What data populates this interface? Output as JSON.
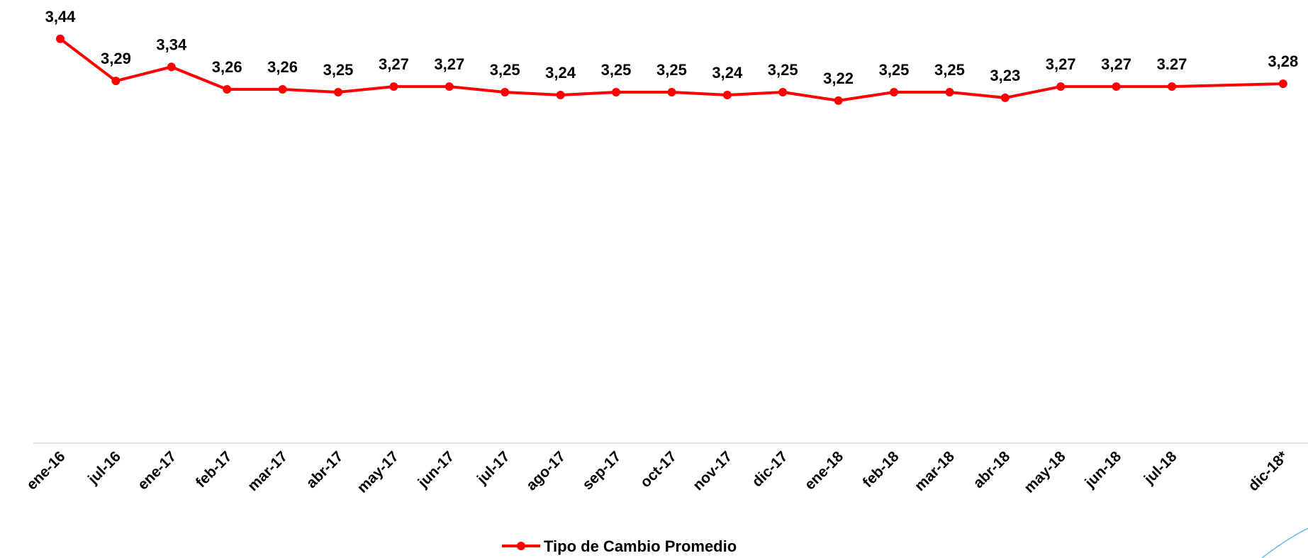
{
  "chart_data": {
    "type": "line",
    "categories": [
      "ene-16",
      "jul-16",
      "ene-17",
      "feb-17",
      "mar-17",
      "abr-17",
      "may-17",
      "jun-17",
      "jul-17",
      "ago-17",
      "sep-17",
      "oct-17",
      "nov-17",
      "dic-17",
      "ene-18",
      "feb-18",
      "mar-18",
      "abr-18",
      "may-18",
      "jun-18",
      "jul-18",
      null,
      "dic-18*"
    ],
    "series": [
      {
        "name": "Tipo de Cambio Promedio",
        "color": "#ff0000",
        "values": [
          3.44,
          3.29,
          3.34,
          3.26,
          3.26,
          3.25,
          3.27,
          3.27,
          3.25,
          3.24,
          3.25,
          3.25,
          3.24,
          3.25,
          3.22,
          3.25,
          3.25,
          3.23,
          3.27,
          3.27,
          3.27,
          null,
          3.28
        ],
        "value_labels": [
          "3,44",
          "3,29",
          "3,34",
          "3,26",
          "3,26",
          "3,25",
          "3,27",
          "3,27",
          "3,25",
          "3,24",
          "3,25",
          "3,25",
          "3,24",
          "3,25",
          "3,22",
          "3,25",
          "3,25",
          "3,23",
          "3,27",
          "3,27",
          "3.27",
          null,
          "3,28"
        ]
      }
    ],
    "ylim": [
      2,
      3.5
    ],
    "legend": "bottom"
  }
}
